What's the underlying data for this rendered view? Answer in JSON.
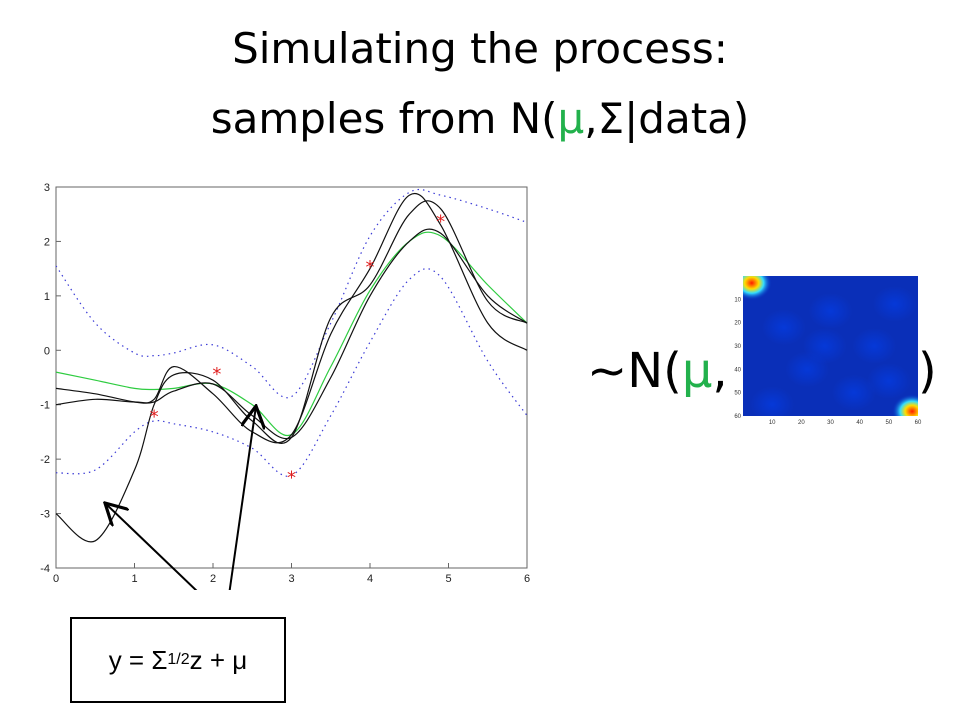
{
  "slide": {
    "title_line1": "Simulating the process:",
    "title_prefix": "samples from N(",
    "title_mu": "μ",
    "title_suffix": ",Σ|data)",
    "dist_prefix": "~N(",
    "dist_mu": "μ",
    "dist_comma": ",",
    "dist_close": ")",
    "equation_left": "y = Σ",
    "equation_sup": "1/2",
    "equation_right": " z + μ",
    "colors": {
      "mu": "#22b14c",
      "mean_curve": "#2ecc40",
      "band": "#3b3bd6",
      "observations": "#e02020",
      "samples": "#111111"
    }
  },
  "chart_data": [
    {
      "type": "line",
      "title": "",
      "xlabel": "",
      "ylabel": "",
      "xlim": [
        0,
        6
      ],
      "ylim": [
        -4,
        3
      ],
      "xticks": [
        0,
        1,
        2,
        3,
        4,
        5,
        6
      ],
      "yticks": [
        -4,
        -3,
        -2,
        -1,
        0,
        1,
        2,
        3
      ],
      "grid": false,
      "x": [
        0,
        0.5,
        1.0,
        1.25,
        1.5,
        2.0,
        2.5,
        3.0,
        3.5,
        4.0,
        4.5,
        4.9,
        5.5,
        6.0
      ],
      "series": [
        {
          "role": "mean",
          "values": [
            -0.4,
            -0.55,
            -0.7,
            -0.72,
            -0.7,
            -0.62,
            -1.0,
            -1.55,
            -0.3,
            1.1,
            2.0,
            2.1,
            1.2,
            0.5
          ]
        },
        {
          "role": "upper_band",
          "values": [
            1.55,
            0.5,
            -0.05,
            -0.1,
            -0.05,
            0.1,
            -0.3,
            -0.85,
            0.5,
            2.1,
            2.9,
            2.85,
            2.6,
            2.35
          ]
        },
        {
          "role": "lower_band",
          "values": [
            -2.25,
            -2.2,
            -1.5,
            -1.3,
            -1.35,
            -1.5,
            -1.8,
            -2.3,
            -1.2,
            0.15,
            1.3,
            1.35,
            -0.2,
            -1.2
          ]
        },
        {
          "role": "sample",
          "values": [
            -0.7,
            -0.8,
            -0.95,
            -0.95,
            -0.75,
            -0.62,
            -1.2,
            -1.6,
            -0.5,
            1.0,
            2.0,
            2.15,
            1.0,
            0.5
          ]
        },
        {
          "role": "sample",
          "values": [
            -3.0,
            -3.5,
            -2.2,
            -1.0,
            -0.45,
            -0.55,
            -1.3,
            -1.6,
            0.6,
            1.2,
            2.5,
            2.6,
            0.9,
            0.5
          ]
        },
        {
          "role": "sample",
          "values": [
            -1.0,
            -0.9,
            -0.95,
            -0.9,
            -0.3,
            -0.8,
            -1.5,
            -1.55,
            0.3,
            1.5,
            2.85,
            2.3,
            0.5,
            0.0
          ]
        }
      ],
      "observations": [
        {
          "x": 1.25,
          "y": -1.2
        },
        {
          "x": 2.05,
          "y": -0.42
        },
        {
          "x": 3.0,
          "y": -2.32
        },
        {
          "x": 4.0,
          "y": 1.55
        },
        {
          "x": 4.9,
          "y": 2.38
        }
      ]
    },
    {
      "type": "heatmap",
      "xticks": [
        10,
        20,
        30,
        40,
        50,
        60
      ],
      "yticks": [
        10,
        20,
        30,
        40,
        50,
        60
      ],
      "grid": false,
      "hotspots": [
        {
          "x": 3,
          "y": 3,
          "value": 1.0
        },
        {
          "x": 58,
          "y": 58,
          "value": 1.0
        }
      ],
      "background_value": 0.08
    }
  ]
}
